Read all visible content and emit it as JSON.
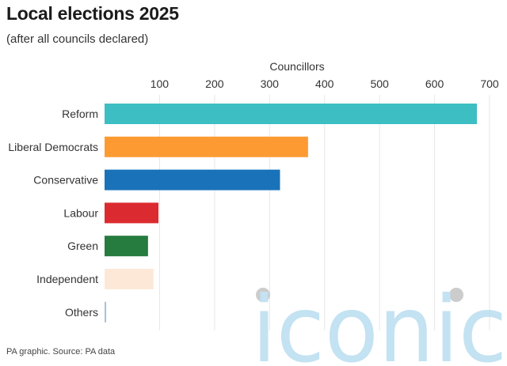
{
  "title": "Local elections 2025",
  "subtitle": "(after all councils declared)",
  "footer": "PA graphic. Source: PA data",
  "watermark": "iconic",
  "chart_data": {
    "type": "bar",
    "orientation": "horizontal",
    "xlabel": "Councillors",
    "x_axis_position": "top",
    "xlim": [
      0,
      700
    ],
    "ticks": [
      100,
      200,
      300,
      400,
      500,
      600,
      700
    ],
    "grid": true,
    "categories": [
      "Reform",
      "Liberal Democrats",
      "Conservative",
      "Labour",
      "Green",
      "Independent",
      "Others"
    ],
    "values": [
      677,
      370,
      319,
      98,
      79,
      89,
      3
    ],
    "colors": [
      "#3dbec3",
      "#fd9b32",
      "#1a72b9",
      "#dc2b30",
      "#267b3f",
      "#fde8d7",
      "#a9c3d2"
    ]
  }
}
